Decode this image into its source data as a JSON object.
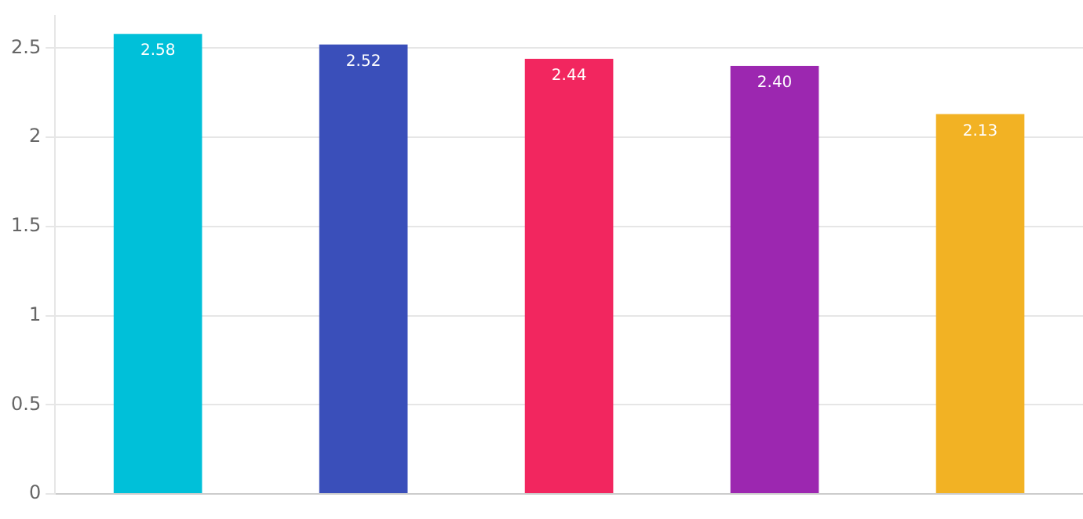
{
  "chart_data": {
    "type": "bar",
    "categories": [
      null,
      null,
      null,
      null,
      null
    ],
    "values": [
      2.58,
      2.52,
      2.44,
      2.4,
      2.13
    ],
    "colors": [
      "#00c0d9",
      "#3a4fba",
      "#f2265f",
      "#9c27b0",
      "#f2b224"
    ],
    "value_labels": [
      "2.58",
      "2.52",
      "2.44",
      "2.40",
      "2.13"
    ],
    "ylim": [
      0,
      2.68
    ],
    "yticks": [
      0,
      0.5,
      1,
      1.5,
      2,
      2.5
    ],
    "grid": "y",
    "tick_labels": "y"
  }
}
